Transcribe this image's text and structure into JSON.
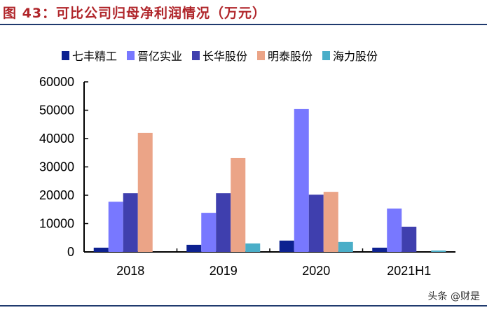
{
  "title": "图 43：可比公司归母净利润情况（万元）",
  "watermark": "头条 @财是",
  "chart_data": {
    "type": "bar",
    "title": "",
    "categories": [
      "2018",
      "2019",
      "2020",
      "2021H1"
    ],
    "ylim": [
      0,
      60000
    ],
    "yticks": [
      0,
      10000,
      20000,
      30000,
      40000,
      50000,
      60000
    ],
    "legend_position": "top",
    "grid": false,
    "series": [
      {
        "name": "七丰精工",
        "color": "#0d2190",
        "values": [
          1500,
          2500,
          4000,
          1500
        ]
      },
      {
        "name": "晋亿实业",
        "color": "#7878ff",
        "values": [
          17700,
          13800,
          50400,
          15300
        ]
      },
      {
        "name": "长华股份",
        "color": "#3f3fae",
        "values": [
          20700,
          20700,
          20200,
          8900
        ]
      },
      {
        "name": "明泰股份",
        "color": "#eba487",
        "values": [
          42000,
          33100,
          21200,
          0
        ]
      },
      {
        "name": "海力股份",
        "color": "#4aaec8",
        "values": [
          0,
          3000,
          3500,
          500
        ]
      }
    ]
  }
}
